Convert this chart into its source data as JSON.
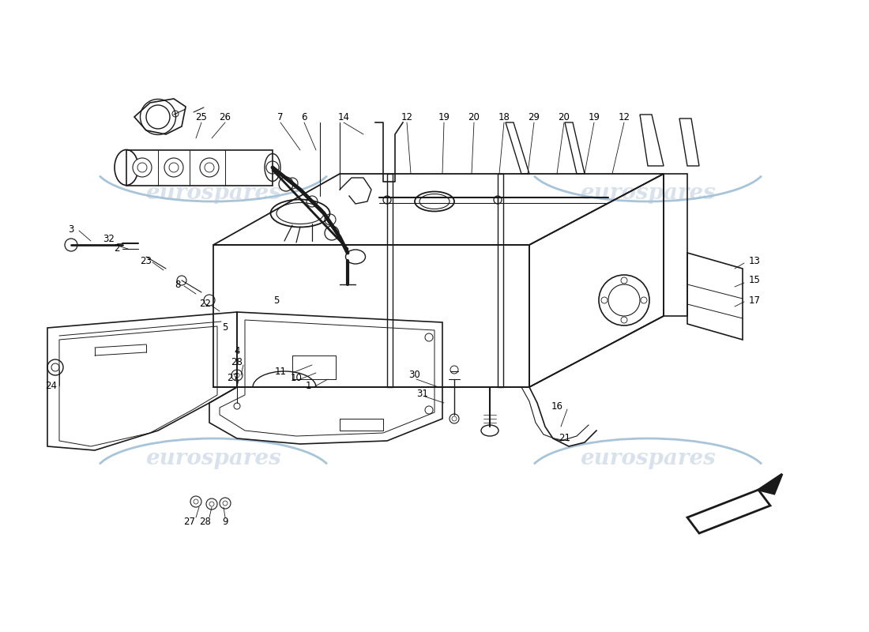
{
  "background_color": "#ffffff",
  "watermark_text": "eurospares",
  "watermark_color": "#c0d0e0",
  "line_color": "#1a1a1a",
  "label_color": "#000000",
  "label_fontsize": 8.5
}
